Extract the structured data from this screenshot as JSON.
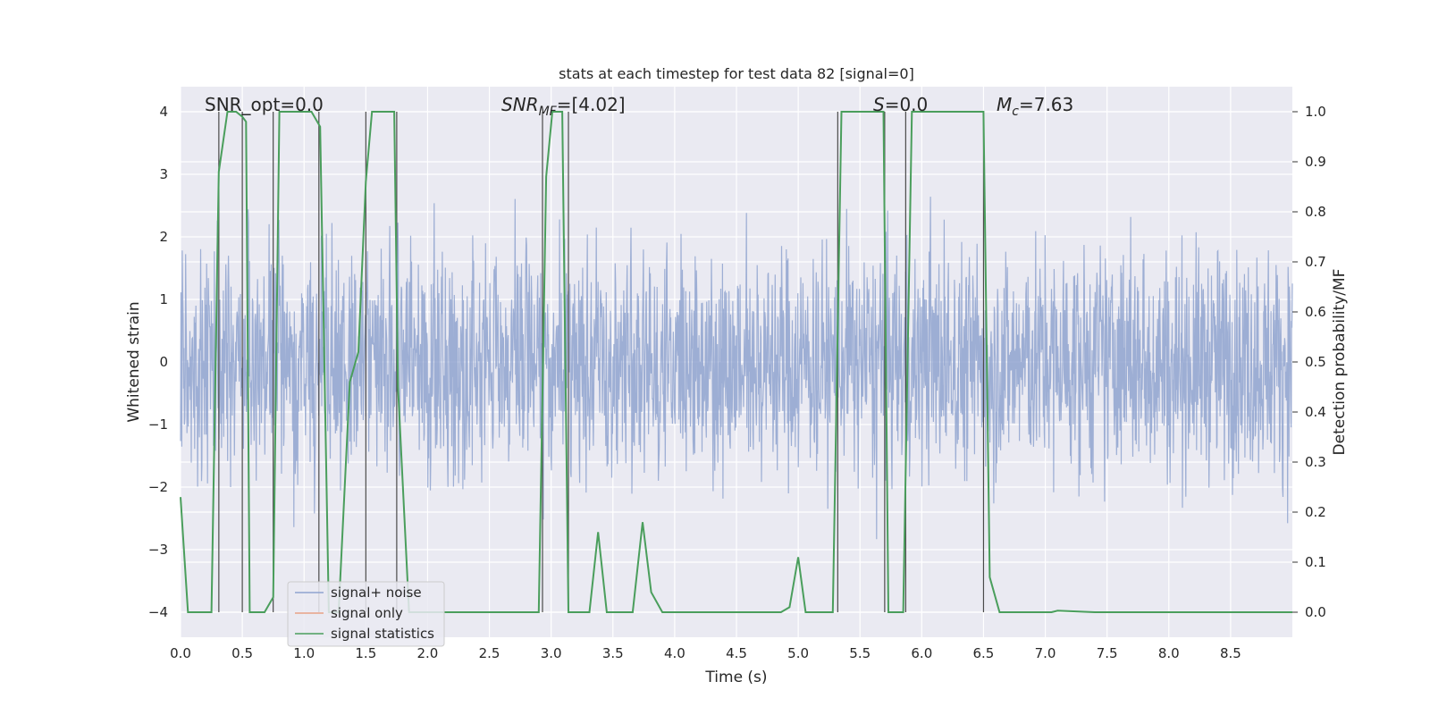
{
  "chart_data": {
    "type": "line",
    "title": "stats at each timestep for test data 82 [signal=0]",
    "xlabel": "Time (s)",
    "ylabel_left": "Whitened strain",
    "ylabel_right": "Detection probability/MF",
    "xlim": [
      0.0,
      9.0
    ],
    "ylim_left": [
      -4.4,
      4.4
    ],
    "ylim_right": [
      -0.05,
      1.05
    ],
    "x_ticks": [
      "0.0",
      "0.5",
      "1.0",
      "1.5",
      "2.0",
      "2.5",
      "3.0",
      "3.5",
      "4.0",
      "4.5",
      "5.0",
      "5.5",
      "6.0",
      "6.5",
      "7.0",
      "7.5",
      "8.0",
      "8.5"
    ],
    "y_ticks_left": [
      "4",
      "3",
      "2",
      "1",
      "0",
      "−1",
      "−2",
      "−3",
      "−4"
    ],
    "y_ticks_right": [
      "1.0",
      "0.9",
      "0.8",
      "0.7",
      "0.6",
      "0.5",
      "0.4",
      "0.3",
      "0.2",
      "0.1",
      "0.0"
    ],
    "grid": true,
    "legend_position": "lower-left",
    "annotations": {
      "snr_opt": "SNR_opt=0.0",
      "snr_mf_sym": "SNR",
      "snr_mf_sub": "MF",
      "snr_mf_val": "=[4.02]",
      "s_sym": "S",
      "s_val": "=0.0",
      "mc_sym": "M",
      "mc_sub": "c",
      "mc_val": "=7.63"
    },
    "series": [
      {
        "name": "signal+ noise",
        "color": "#8fa3cf",
        "note": "dense noise trace, approx. |strain| within 1.6, spikes up to about 4"
      },
      {
        "name": "signal only",
        "color": "#e8a286",
        "x": [],
        "y": []
      },
      {
        "name": "signal statistics",
        "color": "#4a9e5c",
        "axis": "right",
        "x": [
          0.0,
          0.06,
          0.25,
          0.31,
          0.38,
          0.45,
          0.5,
          0.53,
          0.56,
          0.68,
          0.75,
          0.8,
          1.06,
          1.13,
          1.2,
          1.28,
          1.37,
          1.44,
          1.5,
          1.55,
          1.6,
          1.73,
          1.76,
          1.85,
          2.9,
          2.96,
          3.01,
          3.09,
          3.14,
          3.2,
          3.31,
          3.38,
          3.45,
          3.66,
          3.74,
          3.81,
          3.9,
          4.86,
          4.93,
          5.0,
          5.06,
          5.28,
          5.35,
          5.69,
          5.73,
          5.85,
          5.92,
          6.5,
          6.55,
          6.63,
          7.05,
          7.1,
          7.4,
          9.0
        ],
        "y": [
          0.23,
          0.0,
          0.0,
          0.88,
          1.0,
          1.0,
          0.99,
          0.98,
          0.0,
          0.0,
          0.03,
          1.0,
          1.0,
          0.97,
          0.0,
          0.0,
          0.46,
          0.52,
          0.86,
          1.0,
          1.0,
          1.0,
          0.45,
          0.0,
          0.0,
          0.87,
          1.0,
          1.0,
          0.0,
          0.0,
          0.0,
          0.16,
          0.0,
          0.0,
          0.18,
          0.04,
          0.0,
          0.0,
          0.01,
          0.11,
          0.0,
          0.0,
          1.0,
          1.0,
          0.0,
          0.0,
          1.0,
          1.0,
          0.07,
          0.0,
          0.0,
          0.003,
          0.0,
          0.0
        ]
      }
    ],
    "vertical_markers_x": [
      0.31,
      0.5,
      0.75,
      1.12,
      1.5,
      1.75,
      2.93,
      3.14,
      5.32,
      5.7,
      5.87,
      6.5
    ]
  }
}
